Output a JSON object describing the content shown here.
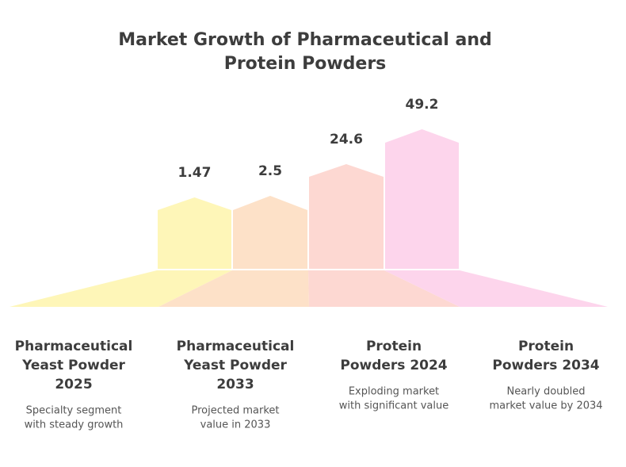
{
  "title": [
    "Market Growth of Pharmaceutical and",
    "Protein Powders"
  ],
  "items": [
    {
      "value": "1.47",
      "label": [
        "Pharmaceutical",
        "Yeast Powder",
        "2025"
      ],
      "description": [
        "Specialty segment",
        "with steady growth"
      ]
    },
    {
      "value": "2.5",
      "label": [
        "Pharmaceutical",
        "Yeast Powder",
        "2033"
      ],
      "description": [
        "Projected market",
        "value in 2033"
      ]
    },
    {
      "value": "24.6",
      "label": [
        "Protein",
        "Powders 2024"
      ],
      "description": [
        "Exploding market",
        "with significant value"
      ]
    },
    {
      "value": "49.2",
      "label": [
        "Protein",
        "Powders 2034"
      ],
      "description": [
        "Nearly doubled",
        "market value by 2034"
      ]
    }
  ]
}
